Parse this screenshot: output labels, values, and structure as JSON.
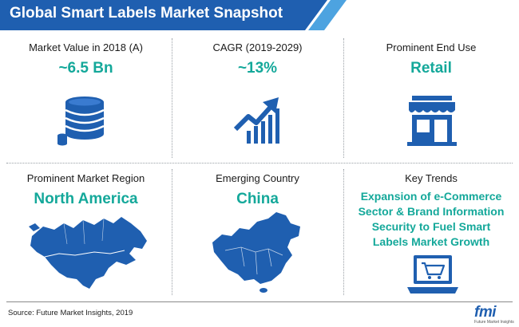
{
  "header": {
    "title": "Global Smart Labels Market Snapshot"
  },
  "cells": {
    "market_value": {
      "label": "Market Value in 2018 (A)",
      "value": "~6.5 Bn",
      "icon": "coin-stack-icon"
    },
    "cagr": {
      "label": "CAGR (2019-2029)",
      "value": "~13%",
      "icon": "growth-chart-icon"
    },
    "end_use": {
      "label": "Prominent End Use",
      "value": "Retail",
      "icon": "storefront-icon"
    },
    "region": {
      "label": "Prominent Market Region",
      "value": "North America",
      "icon": "north-america-map-icon"
    },
    "country": {
      "label": "Emerging Country",
      "value": "China",
      "icon": "china-map-icon"
    },
    "trends": {
      "label": "Key Trends",
      "lines": [
        "Expansion of e-Commerce",
        "Sector & Brand Information",
        "Security to Fuel Smart",
        "Labels Market Growth"
      ],
      "icon": "laptop-cart-icon"
    }
  },
  "footer": {
    "source": "Source: Future Market Insights, 2019",
    "logo_text": "fmi",
    "logo_subtext": "Future Market Insights"
  },
  "colors": {
    "primary": "#1f5fb0",
    "accent": "#14a89a",
    "banner_stripe": "#4da3e0"
  }
}
